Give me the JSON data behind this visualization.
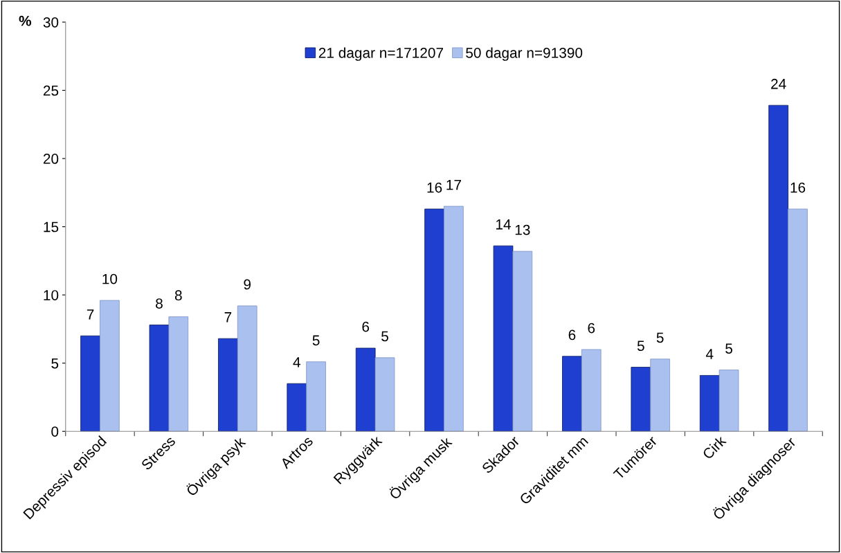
{
  "chart_data": {
    "type": "bar",
    "ylabel": "%",
    "categories": [
      "Depressiv episod",
      "Stress",
      "Övriga psyk",
      "Artros",
      "Ryggvärk",
      "Övriga musk",
      "Skador",
      "Graviditet mm",
      "Tumörer",
      "Cirk",
      "Övriga diagnoser"
    ],
    "series": [
      {
        "name": "21 dagar n=171207",
        "color": "#1f3fd1",
        "values": [
          7.0,
          7.8,
          6.8,
          3.5,
          6.1,
          16.3,
          13.6,
          5.5,
          4.7,
          4.1,
          23.9
        ],
        "value_labels": [
          "7",
          "8",
          "7",
          "4",
          "6",
          "16",
          "14",
          "6",
          "5",
          "4",
          "24"
        ]
      },
      {
        "name": "50 dagar n=91390",
        "color": "#aac0ef",
        "values": [
          9.6,
          8.4,
          9.2,
          5.1,
          5.4,
          16.5,
          13.2,
          6.0,
          5.3,
          4.5,
          16.3
        ],
        "value_labels": [
          "10",
          "8",
          "9",
          "5",
          "5",
          "17",
          "13",
          "6",
          "5",
          "5",
          "16"
        ]
      }
    ],
    "ylim": [
      0,
      30
    ],
    "yticks": [
      0,
      5,
      10,
      15,
      20,
      25,
      30
    ],
    "grid": false,
    "legend": "top"
  }
}
